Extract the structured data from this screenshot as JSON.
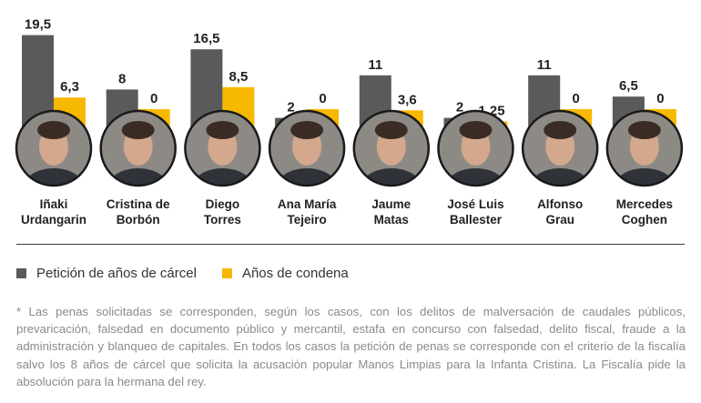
{
  "chart_data": {
    "type": "bar",
    "categories": [
      [
        "Iñaki",
        "Urdangarin"
      ],
      [
        "Cristina de",
        "Borbón"
      ],
      [
        "Diego",
        "Torres"
      ],
      [
        "Ana María",
        "Tejeiro"
      ],
      [
        "Jaume",
        "Matas"
      ],
      [
        "José Luis",
        "Ballester"
      ],
      [
        "Alfonso",
        "Grau"
      ],
      [
        "Mercedes",
        "Coghen"
      ]
    ],
    "series": [
      {
        "name": "Petición de años de cárcel",
        "color": "#5a5a5a",
        "values": [
          19.5,
          8,
          16.5,
          2,
          11,
          2,
          11,
          6.5
        ],
        "labels": [
          "19,5",
          "8",
          "16,5",
          "2",
          "11",
          "2",
          "11",
          "6,5"
        ]
      },
      {
        "name": "Años de condena",
        "color": "#f7b800",
        "values": [
          6.3,
          0,
          8.5,
          0,
          3.6,
          1.25,
          0,
          0
        ],
        "labels": [
          "6,3",
          "0",
          "8,5",
          "0",
          "3,6",
          "1,25",
          "0",
          "0"
        ]
      }
    ],
    "ylim": [
      0,
      20
    ]
  },
  "footnote": "* Las penas solicitadas se corresponden, según los casos, con los delitos de malversación de caudales públicos, prevaricación, falsedad en documento público y mercantil, estafa en concurso con falsedad, delito fiscal, fraude a la administración y blanqueo de capitales. En todos los casos la petición de penas se corresponde con el criterio de la fiscalía salvo los 8 años de cárcel que solicita la acusación popular Manos Limpias para la Infanta Cristina. La Fiscalía pide la absolución para la hermana del rey."
}
